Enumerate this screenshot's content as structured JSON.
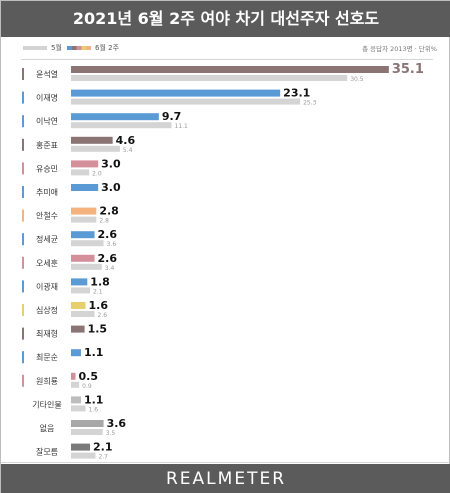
{
  "header": {
    "title": "2021년 6월 2주 여야 차기 대선주자 선호도"
  },
  "legend": {
    "previous_label": "5월",
    "current_label": "6월 2주",
    "note": "총 응답자 2013명 · 단위%"
  },
  "footer": {
    "brand": "REALMETER"
  },
  "colors": {
    "previous": "#d4d4d4",
    "highlight": "#8a7474",
    "value_text_highlight": "#8a7474",
    "value_text": "#111111",
    "prev_text": "#9a9a9a"
  },
  "chart_data": {
    "type": "bar",
    "orientation": "horizontal",
    "title": "2021년 6월 2주 여야 차기 대선주자 선호도",
    "xlabel": "",
    "ylabel": "",
    "grid": false,
    "legend_position": "top-left",
    "categories": [
      "윤석열",
      "이재명",
      "이낙연",
      "홍준표",
      "유승민",
      "추미애",
      "안철수",
      "정세균",
      "오세훈",
      "이광재",
      "심상정",
      "최재형",
      "최문순",
      "원희룡",
      "기타인물",
      "없음",
      "잘모름"
    ],
    "series": [
      {
        "name": "6월 2주",
        "values": [
          35.1,
          23.1,
          9.7,
          4.6,
          3.0,
          3.0,
          2.8,
          2.6,
          2.6,
          1.8,
          1.6,
          1.5,
          1.1,
          0.5,
          1.1,
          3.6,
          2.1
        ]
      },
      {
        "name": "5월",
        "values": [
          30.5,
          25.3,
          11.1,
          5.4,
          2.0,
          null,
          2.8,
          3.6,
          3.4,
          2.1,
          2.6,
          null,
          null,
          0.9,
          1.6,
          3.5,
          2.7
        ]
      }
    ],
    "bar_colors": [
      "#8a7474",
      "#5b9bd5",
      "#5b9bd5",
      "#8a7474",
      "#d4909a",
      "#5b9bd5",
      "#f4b27f",
      "#5b9bd5",
      "#d4909a",
      "#5b9bd5",
      "#e8cf6e",
      "#8a7474",
      "#5b9bd5",
      "#d4909a",
      "#bdbdbd",
      "#a8a8a8",
      "#7a7a7a"
    ],
    "label_bar_colors": [
      "#8a7474",
      "#5b9bd5",
      "#5b9bd5",
      "#8a7474",
      "#d4909a",
      "#5b9bd5",
      "#f4b27f",
      "#5b9bd5",
      "#d4909a",
      "#5b9bd5",
      "#e8cf6e",
      "#8a7474",
      "#5b9bd5",
      "#d4909a",
      null,
      null,
      null
    ],
    "xlim": [
      0,
      36
    ]
  }
}
